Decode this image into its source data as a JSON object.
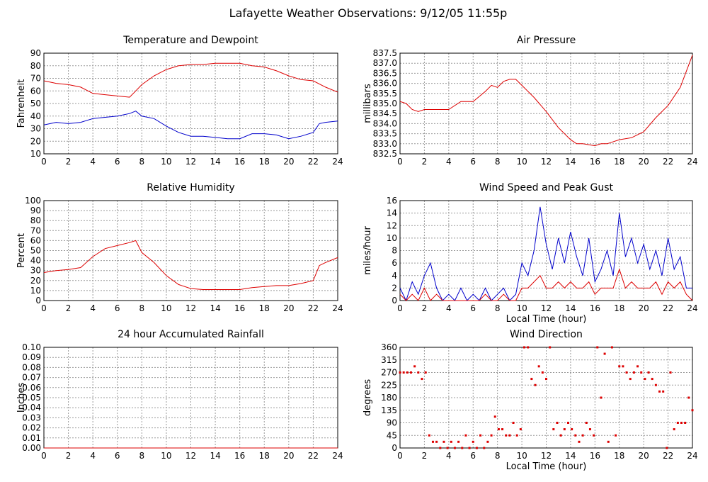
{
  "page": {
    "title": "Lafayette Weather Observations: 9/12/05 11:55p"
  },
  "colors": {
    "red": "#dd0000",
    "blue": "#0000cc",
    "grid": "#999999"
  },
  "chart_data": [
    {
      "id": "temp",
      "type": "line",
      "title": "Temperature and Dewpoint",
      "xlabel": "",
      "ylabel": "Fahrenheit",
      "xlim": [
        0,
        24
      ],
      "ylim": [
        10,
        90
      ],
      "xticks": [
        0,
        2,
        4,
        6,
        8,
        10,
        12,
        14,
        16,
        18,
        20,
        22,
        24
      ],
      "yticks": [
        10,
        20,
        30,
        40,
        50,
        60,
        70,
        80,
        90
      ],
      "grid": true,
      "series": [
        {
          "color": "red",
          "x": [
            0,
            1,
            2,
            3,
            4,
            5,
            6,
            7,
            7.5,
            8,
            9,
            10,
            11,
            12,
            13,
            14,
            15,
            16,
            17,
            18,
            19,
            20,
            21,
            22,
            23,
            24
          ],
          "y": [
            68,
            66,
            65,
            63,
            58,
            57,
            56,
            55,
            60,
            65,
            72,
            77,
            80,
            81,
            81,
            82,
            82,
            82,
            80,
            79,
            76,
            72,
            69,
            68,
            63,
            59
          ]
        },
        {
          "color": "blue",
          "x": [
            0,
            1,
            2,
            3,
            4,
            5,
            6,
            7,
            7.5,
            8,
            9,
            10,
            11,
            12,
            13,
            14,
            15,
            16,
            17,
            18,
            19,
            20,
            21,
            22,
            22.5,
            23,
            24
          ],
          "y": [
            33,
            35,
            34,
            35,
            38,
            39,
            40,
            42,
            44,
            40,
            38,
            32,
            27,
            24,
            24,
            23,
            22,
            22,
            26,
            26,
            25,
            22,
            24,
            27,
            34,
            35,
            36
          ]
        }
      ]
    },
    {
      "id": "pressure",
      "type": "line",
      "title": "Air Pressure",
      "xlabel": "",
      "ylabel": "millibars",
      "xlim": [
        0,
        24
      ],
      "ylim": [
        832.5,
        837.5
      ],
      "xticks": [
        0,
        2,
        4,
        6,
        8,
        10,
        12,
        14,
        16,
        18,
        20,
        22,
        24
      ],
      "yticks": [
        "832.5",
        "833.0",
        "833.5",
        "834.0",
        "834.5",
        "835.0",
        "835.5",
        "836.0",
        "836.5",
        "837.0",
        "837.5"
      ],
      "grid": true,
      "series": [
        {
          "color": "red",
          "x": [
            0,
            0.5,
            1,
            1.5,
            2,
            3,
            4,
            5,
            6,
            7,
            7.5,
            8,
            8.5,
            9,
            9.5,
            10,
            11,
            12,
            13,
            14,
            14.5,
            15,
            16,
            16.5,
            17,
            18,
            19,
            20,
            21,
            22,
            23,
            23.5,
            24
          ],
          "y": [
            835.1,
            835.0,
            834.7,
            834.6,
            834.7,
            834.7,
            834.7,
            835.1,
            835.1,
            835.6,
            835.9,
            835.8,
            836.1,
            836.2,
            836.2,
            835.9,
            835.3,
            834.6,
            833.8,
            833.2,
            833.0,
            833.0,
            832.9,
            833.0,
            833.0,
            833.2,
            833.3,
            833.6,
            834.3,
            834.9,
            835.8,
            836.6,
            837.4
          ]
        }
      ]
    },
    {
      "id": "humidity",
      "type": "line",
      "title": "Relative Humidity",
      "xlabel": "",
      "ylabel": "Percent",
      "xlim": [
        0,
        24
      ],
      "ylim": [
        0,
        100
      ],
      "xticks": [
        0,
        2,
        4,
        6,
        8,
        10,
        12,
        14,
        16,
        18,
        20,
        22,
        24
      ],
      "yticks": [
        0,
        10,
        20,
        30,
        40,
        50,
        60,
        70,
        80,
        90,
        100
      ],
      "grid": true,
      "series": [
        {
          "color": "red",
          "x": [
            0,
            1,
            2,
            3,
            4,
            5,
            6,
            7,
            7.5,
            8,
            9,
            10,
            11,
            12,
            13,
            14,
            15,
            16,
            17,
            18,
            19,
            20,
            21,
            22,
            22.5,
            23,
            24
          ],
          "y": [
            28,
            30,
            31,
            33,
            44,
            52,
            55,
            58,
            60,
            48,
            38,
            25,
            16,
            12,
            11,
            11,
            11,
            11,
            13,
            14,
            15,
            15,
            17,
            20,
            35,
            38,
            43
          ]
        }
      ]
    },
    {
      "id": "wind",
      "type": "line",
      "title": "Wind Speed and Peak Gust",
      "xlabel": "Local Time (hour)",
      "ylabel": "miles/hour",
      "xlim": [
        0,
        24
      ],
      "ylim": [
        0,
        16
      ],
      "xticks": [
        0,
        2,
        4,
        6,
        8,
        10,
        12,
        14,
        16,
        18,
        20,
        22,
        24
      ],
      "yticks": [
        0,
        2,
        4,
        6,
        8,
        10,
        12,
        14,
        16
      ],
      "grid": true,
      "series": [
        {
          "color": "blue",
          "x": [
            0,
            0.5,
            1,
            1.5,
            2,
            2.5,
            3,
            3.5,
            4,
            4.5,
            5,
            5.5,
            6,
            6.5,
            7,
            7.5,
            8,
            8.5,
            9,
            9.5,
            10,
            10.5,
            11,
            11.5,
            12,
            12.5,
            13,
            13.5,
            14,
            14.5,
            15,
            15.5,
            16,
            16.5,
            17,
            17.5,
            18,
            18.5,
            19,
            19.5,
            20,
            20.5,
            21,
            21.5,
            22,
            22.5,
            23,
            23.5,
            24
          ],
          "y": [
            2,
            0,
            3,
            1,
            4,
            6,
            2,
            0,
            1,
            0,
            2,
            0,
            1,
            0,
            2,
            0,
            1,
            2,
            0,
            1,
            6,
            4,
            8,
            15,
            9,
            5,
            10,
            6,
            11,
            7,
            4,
            10,
            3,
            5,
            8,
            4,
            14,
            7,
            10,
            6,
            9,
            5,
            8,
            4,
            10,
            5,
            7,
            2,
            2
          ]
        },
        {
          "color": "red",
          "x": [
            0,
            0.5,
            1,
            1.5,
            2,
            2.5,
            3,
            3.5,
            4,
            4.5,
            5,
            5.5,
            6,
            6.5,
            7,
            7.5,
            8,
            8.5,
            9,
            9.5,
            10,
            10.5,
            11,
            11.5,
            12,
            12.5,
            13,
            13.5,
            14,
            14.5,
            15,
            15.5,
            16,
            16.5,
            17,
            17.5,
            18,
            18.5,
            19,
            19.5,
            20,
            20.5,
            21,
            21.5,
            22,
            22.5,
            23,
            23.5,
            24
          ],
          "y": [
            1,
            0,
            1,
            0,
            2,
            0,
            1,
            0,
            0,
            0,
            0,
            0,
            0,
            0,
            1,
            0,
            0,
            1,
            0,
            0,
            2,
            2,
            3,
            4,
            2,
            2,
            3,
            2,
            3,
            2,
            2,
            3,
            1,
            2,
            2,
            2,
            5,
            2,
            3,
            2,
            2,
            2,
            3,
            1,
            3,
            2,
            3,
            1,
            0
          ]
        }
      ]
    },
    {
      "id": "rain",
      "type": "line",
      "title": "24 hour Accumulated Rainfall",
      "xlabel": "",
      "ylabel": "Inches",
      "xlim": [
        0,
        24
      ],
      "ylim": [
        0,
        0.1
      ],
      "xticks": [
        0,
        2,
        4,
        6,
        8,
        10,
        12,
        14,
        16,
        18,
        20,
        22,
        24
      ],
      "yticks": [
        "0.00",
        "0.01",
        "0.02",
        "0.03",
        "0.04",
        "0.05",
        "0.06",
        "0.07",
        "0.08",
        "0.09",
        "0.10"
      ],
      "grid": true,
      "series": [
        {
          "color": "red",
          "x": [
            0,
            24
          ],
          "y": [
            0,
            0
          ]
        }
      ]
    },
    {
      "id": "direction",
      "type": "scatter",
      "title": "Wind Direction",
      "xlabel": "Local Time (hour)",
      "ylabel": "degrees",
      "xlim": [
        0,
        24
      ],
      "ylim": [
        0,
        360
      ],
      "xticks": [
        0,
        2,
        4,
        6,
        8,
        10,
        12,
        14,
        16,
        18,
        20,
        22,
        24
      ],
      "yticks": [
        0,
        45,
        90,
        135,
        180,
        225,
        270,
        315,
        360
      ],
      "grid": true,
      "series": [
        {
          "color": "red",
          "x": [
            0,
            0.3,
            0.6,
            0.9,
            1.2,
            1.5,
            1.8,
            2.1,
            2.4,
            2.7,
            3.0,
            3.3,
            3.6,
            3.9,
            4.2,
            4.5,
            4.8,
            5.1,
            5.4,
            5.7,
            6.0,
            6.3,
            6.6,
            6.9,
            7.2,
            7.5,
            7.8,
            8.1,
            8.4,
            8.7,
            9.0,
            9.3,
            9.6,
            9.9,
            10.2,
            10.5,
            10.8,
            11.1,
            11.4,
            11.7,
            12.0,
            12.3,
            12.6,
            12.9,
            13.2,
            13.5,
            13.8,
            14.1,
            14.4,
            14.7,
            15.0,
            15.3,
            15.6,
            15.9,
            16.2,
            16.5,
            16.8,
            17.1,
            17.4,
            17.7,
            18.0,
            18.3,
            18.6,
            18.9,
            19.2,
            19.5,
            19.8,
            20.1,
            20.4,
            20.7,
            21.0,
            21.3,
            21.6,
            21.9,
            22.2,
            22.5,
            22.8,
            23.1,
            23.4,
            23.7,
            24.0
          ],
          "y": [
            270,
            270,
            270,
            270,
            292,
            270,
            247,
            270,
            45,
            22,
            22,
            0,
            22,
            0,
            22,
            0,
            22,
            0,
            45,
            0,
            22,
            0,
            45,
            0,
            22,
            45,
            112,
            67,
            67,
            45,
            45,
            90,
            45,
            67,
            360,
            360,
            247,
            225,
            292,
            270,
            247,
            360,
            67,
            90,
            45,
            67,
            90,
            67,
            45,
            22,
            45,
            90,
            67,
            45,
            360,
            180,
            337,
            22,
            360,
            45,
            292,
            292,
            270,
            247,
            270,
            292,
            270,
            247,
            270,
            247,
            225,
            202,
            202,
            0,
            270,
            67,
            90,
            90,
            90,
            180,
            135
          ]
        }
      ]
    }
  ]
}
